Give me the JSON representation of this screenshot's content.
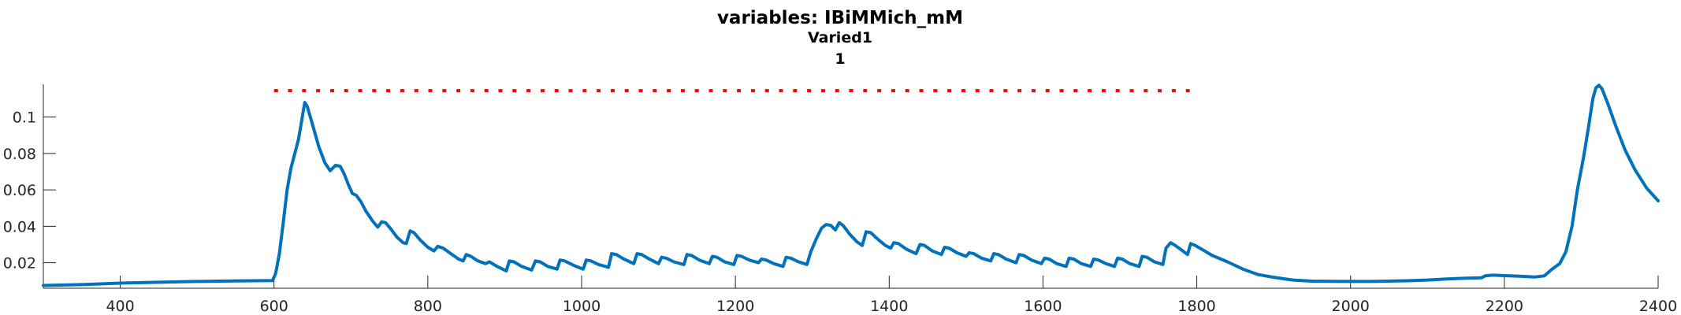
{
  "chart_data": {
    "type": "line",
    "title": "variables: IBiMMich_mM",
    "subtitle_lines": [
      "Varied1",
      "1"
    ],
    "xlabel": "",
    "ylabel": "",
    "xlim": [
      300,
      2400
    ],
    "ylim": [
      0.006,
      0.118
    ],
    "xticks": [
      400,
      600,
      800,
      1000,
      1200,
      1400,
      1600,
      1800,
      2000,
      2200,
      2400
    ],
    "yticks": [
      0.02,
      0.04,
      0.06,
      0.08,
      0.1
    ],
    "ytick_labels": [
      "0.02",
      "0.04",
      "0.06",
      "0.08",
      "0.1"
    ],
    "grid": false,
    "series": [
      {
        "color": "#0072BD",
        "style": "solid",
        "points": [
          [
            300,
            0.0075
          ],
          [
            350,
            0.008
          ],
          [
            400,
            0.0088
          ],
          [
            450,
            0.0093
          ],
          [
            500,
            0.0097
          ],
          [
            550,
            0.01
          ],
          [
            598,
            0.0102
          ],
          [
            602,
            0.014
          ],
          [
            607,
            0.025
          ],
          [
            612,
            0.042
          ],
          [
            617,
            0.06
          ],
          [
            622,
            0.072
          ],
          [
            627,
            0.08
          ],
          [
            632,
            0.088
          ],
          [
            636,
            0.098
          ],
          [
            640,
            0.108
          ],
          [
            643,
            0.106
          ],
          [
            650,
            0.096
          ],
          [
            658,
            0.084
          ],
          [
            666,
            0.075
          ],
          [
            673,
            0.0705
          ],
          [
            680,
            0.0735
          ],
          [
            686,
            0.073
          ],
          [
            691,
            0.069
          ],
          [
            697,
            0.0625
          ],
          [
            702,
            0.058
          ],
          [
            707,
            0.057
          ],
          [
            713,
            0.0535
          ],
          [
            720,
            0.048
          ],
          [
            728,
            0.043
          ],
          [
            735,
            0.0395
          ],
          [
            740,
            0.0425
          ],
          [
            745,
            0.042
          ],
          [
            752,
            0.0385
          ],
          [
            760,
            0.034
          ],
          [
            768,
            0.031
          ],
          [
            772,
            0.0305
          ],
          [
            777,
            0.0375
          ],
          [
            782,
            0.0365
          ],
          [
            790,
            0.0325
          ],
          [
            800,
            0.0285
          ],
          [
            808,
            0.0265
          ],
          [
            813,
            0.029
          ],
          [
            820,
            0.028
          ],
          [
            830,
            0.025
          ],
          [
            840,
            0.022
          ],
          [
            846,
            0.021
          ],
          [
            850,
            0.0245
          ],
          [
            856,
            0.0235
          ],
          [
            865,
            0.021
          ],
          [
            875,
            0.0195
          ],
          [
            880,
            0.0205
          ],
          [
            890,
            0.018
          ],
          [
            902,
            0.0155
          ],
          [
            906,
            0.021
          ],
          [
            912,
            0.0205
          ],
          [
            922,
            0.018
          ],
          [
            935,
            0.016
          ],
          [
            940,
            0.021
          ],
          [
            946,
            0.0205
          ],
          [
            956,
            0.018
          ],
          [
            968,
            0.0165
          ],
          [
            972,
            0.0215
          ],
          [
            978,
            0.021
          ],
          [
            990,
            0.0185
          ],
          [
            1002,
            0.0165
          ],
          [
            1006,
            0.0215
          ],
          [
            1012,
            0.021
          ],
          [
            1022,
            0.019
          ],
          [
            1035,
            0.0175
          ],
          [
            1039,
            0.025
          ],
          [
            1045,
            0.0245
          ],
          [
            1055,
            0.022
          ],
          [
            1068,
            0.0195
          ],
          [
            1072,
            0.025
          ],
          [
            1078,
            0.0245
          ],
          [
            1088,
            0.022
          ],
          [
            1100,
            0.0195
          ],
          [
            1104,
            0.023
          ],
          [
            1110,
            0.0225
          ],
          [
            1120,
            0.0205
          ],
          [
            1133,
            0.019
          ],
          [
            1137,
            0.0245
          ],
          [
            1143,
            0.024
          ],
          [
            1153,
            0.0215
          ],
          [
            1166,
            0.0195
          ],
          [
            1170,
            0.0235
          ],
          [
            1176,
            0.023
          ],
          [
            1186,
            0.0205
          ],
          [
            1198,
            0.019
          ],
          [
            1202,
            0.024
          ],
          [
            1208,
            0.0235
          ],
          [
            1218,
            0.0215
          ],
          [
            1230,
            0.02
          ],
          [
            1234,
            0.022
          ],
          [
            1240,
            0.0215
          ],
          [
            1250,
            0.0195
          ],
          [
            1262,
            0.018
          ],
          [
            1266,
            0.023
          ],
          [
            1272,
            0.0225
          ],
          [
            1282,
            0.0205
          ],
          [
            1293,
            0.019
          ],
          [
            1298,
            0.026
          ],
          [
            1305,
            0.033
          ],
          [
            1312,
            0.039
          ],
          [
            1318,
            0.041
          ],
          [
            1324,
            0.0405
          ],
          [
            1330,
            0.038
          ],
          [
            1335,
            0.042
          ],
          [
            1340,
            0.0405
          ],
          [
            1348,
            0.036
          ],
          [
            1358,
            0.0315
          ],
          [
            1365,
            0.0295
          ],
          [
            1370,
            0.037
          ],
          [
            1376,
            0.0365
          ],
          [
            1385,
            0.033
          ],
          [
            1395,
            0.0295
          ],
          [
            1402,
            0.028
          ],
          [
            1406,
            0.031
          ],
          [
            1412,
            0.0305
          ],
          [
            1422,
            0.0275
          ],
          [
            1435,
            0.025
          ],
          [
            1440,
            0.03
          ],
          [
            1446,
            0.0295
          ],
          [
            1456,
            0.0265
          ],
          [
            1468,
            0.0245
          ],
          [
            1472,
            0.0285
          ],
          [
            1478,
            0.028
          ],
          [
            1488,
            0.0255
          ],
          [
            1500,
            0.0235
          ],
          [
            1504,
            0.0255
          ],
          [
            1510,
            0.025
          ],
          [
            1520,
            0.0225
          ],
          [
            1532,
            0.021
          ],
          [
            1536,
            0.025
          ],
          [
            1542,
            0.0245
          ],
          [
            1552,
            0.022
          ],
          [
            1565,
            0.02
          ],
          [
            1569,
            0.0245
          ],
          [
            1575,
            0.024
          ],
          [
            1585,
            0.0215
          ],
          [
            1598,
            0.0195
          ],
          [
            1602,
            0.0225
          ],
          [
            1608,
            0.022
          ],
          [
            1618,
            0.0195
          ],
          [
            1630,
            0.018
          ],
          [
            1634,
            0.0225
          ],
          [
            1640,
            0.022
          ],
          [
            1650,
            0.0195
          ],
          [
            1662,
            0.018
          ],
          [
            1666,
            0.022
          ],
          [
            1672,
            0.0215
          ],
          [
            1682,
            0.0195
          ],
          [
            1693,
            0.018
          ],
          [
            1697,
            0.0225
          ],
          [
            1703,
            0.022
          ],
          [
            1713,
            0.0195
          ],
          [
            1725,
            0.018
          ],
          [
            1729,
            0.0235
          ],
          [
            1735,
            0.023
          ],
          [
            1745,
            0.0205
          ],
          [
            1756,
            0.019
          ],
          [
            1760,
            0.028
          ],
          [
            1766,
            0.031
          ],
          [
            1772,
            0.0295
          ],
          [
            1780,
            0.027
          ],
          [
            1788,
            0.0245
          ],
          [
            1792,
            0.0305
          ],
          [
            1798,
            0.0295
          ],
          [
            1808,
            0.027
          ],
          [
            1820,
            0.024
          ],
          [
            1840,
            0.0205
          ],
          [
            1860,
            0.0165
          ],
          [
            1880,
            0.0135
          ],
          [
            1900,
            0.012
          ],
          [
            1925,
            0.0105
          ],
          [
            1950,
            0.0099
          ],
          [
            1975,
            0.0098
          ],
          [
            2000,
            0.0097
          ],
          [
            2025,
            0.0097
          ],
          [
            2050,
            0.0099
          ],
          [
            2075,
            0.0101
          ],
          [
            2100,
            0.0105
          ],
          [
            2125,
            0.0111
          ],
          [
            2150,
            0.0115
          ],
          [
            2170,
            0.0117
          ],
          [
            2175,
            0.0128
          ],
          [
            2185,
            0.0132
          ],
          [
            2200,
            0.0129
          ],
          [
            2220,
            0.0126
          ],
          [
            2240,
            0.0122
          ],
          [
            2252,
            0.0128
          ],
          [
            2262,
            0.0165
          ],
          [
            2272,
            0.0195
          ],
          [
            2280,
            0.026
          ],
          [
            2288,
            0.04
          ],
          [
            2295,
            0.06
          ],
          [
            2303,
            0.078
          ],
          [
            2310,
            0.096
          ],
          [
            2315,
            0.11
          ],
          [
            2319,
            0.116
          ],
          [
            2323,
            0.1175
          ],
          [
            2327,
            0.1155
          ],
          [
            2334,
            0.108
          ],
          [
            2345,
            0.095
          ],
          [
            2357,
            0.082
          ],
          [
            2370,
            0.071
          ],
          [
            2385,
            0.061
          ],
          [
            2400,
            0.054
          ]
        ]
      },
      {
        "color": "#FF0000",
        "style": "dotted",
        "y": 0.1145,
        "x_start": 600,
        "x_end": 1800
      }
    ]
  }
}
